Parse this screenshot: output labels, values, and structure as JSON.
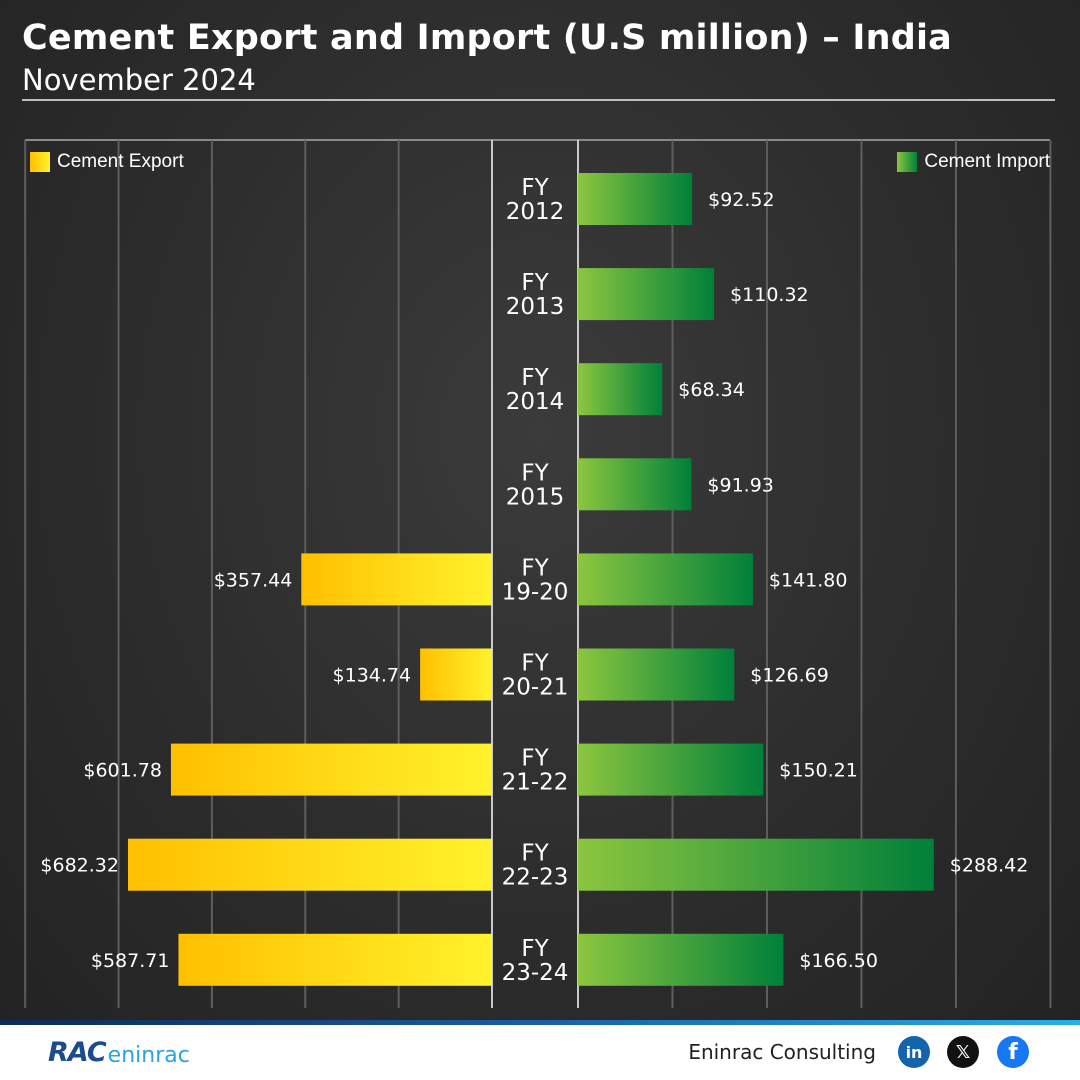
{
  "header": {
    "title": "Cement Export and Import (U.S million) – India",
    "subtitle": "November 2024"
  },
  "colors": {
    "export_gradient": [
      "#ffc000",
      "#fff22c"
    ],
    "import_gradient": [
      "#8cc63f",
      "#00803a"
    ],
    "background": "#2e2e2e",
    "grid": "#6a6a6a"
  },
  "chart_data": {
    "type": "bar",
    "orientation": "horizontal",
    "layout": "butterfly",
    "categories": [
      [
        "FY",
        "2012"
      ],
      [
        "FY",
        "2013"
      ],
      [
        "FY",
        "2014"
      ],
      [
        "FY",
        "2015"
      ],
      [
        "FY",
        "19-20"
      ],
      [
        "FY",
        "20-21"
      ],
      [
        "FY",
        "21-22"
      ],
      [
        "FY",
        "22-23"
      ],
      [
        "FY",
        "23-24"
      ]
    ],
    "series": [
      {
        "name": "Cement Export",
        "side": "left",
        "values": [
          null,
          null,
          null,
          null,
          357.44,
          134.74,
          601.78,
          682.32,
          587.71
        ],
        "labels": [
          "",
          "",
          "",
          "",
          "$357.44",
          "$134.74",
          "$601.78",
          "$682.32",
          "$587.71"
        ]
      },
      {
        "name": "Cement Import",
        "side": "right",
        "values": [
          92.52,
          110.32,
          68.34,
          91.93,
          141.8,
          126.69,
          150.21,
          288.42,
          166.5
        ],
        "labels": [
          "$92.52",
          "$110.32",
          "$68.34",
          "$91.93",
          "$141.80",
          "$126.69",
          "$150.21",
          "$288.42",
          "$166.50"
        ]
      }
    ],
    "legend": [
      "Cement Export",
      "Cement Import"
    ],
    "legend_position": "top",
    "grid": true,
    "xlim_export": [
      0,
      750
    ],
    "xlim_import": [
      0,
      380
    ]
  },
  "footer": {
    "logo_mark": "RAC",
    "logo_word": "eninrac",
    "brand": "Eninrac Consulting",
    "social": [
      {
        "icon": "linkedin-icon",
        "glyph": "in"
      },
      {
        "icon": "x-icon",
        "glyph": "𝕏"
      },
      {
        "icon": "facebook-icon",
        "glyph": "f"
      }
    ]
  }
}
